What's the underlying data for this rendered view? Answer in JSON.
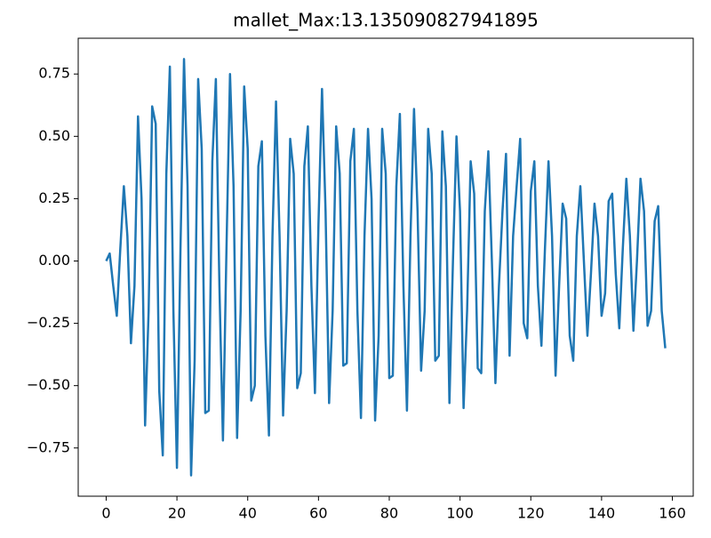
{
  "chart_data": {
    "type": "line",
    "title": "mallet_Max:13.135090827941895",
    "x": [
      0,
      1,
      2,
      3,
      4,
      5,
      6,
      7,
      8,
      9,
      10,
      11,
      12,
      13,
      14,
      15,
      16,
      17,
      18,
      19,
      20,
      21,
      22,
      23,
      24,
      25,
      26,
      27,
      28,
      29,
      30,
      31,
      32,
      33,
      34,
      35,
      36,
      37,
      38,
      39,
      40,
      41,
      42,
      43,
      44,
      45,
      46,
      47,
      48,
      49,
      50,
      51,
      52,
      53,
      54,
      55,
      56,
      57,
      58,
      59,
      60,
      61,
      62,
      63,
      64,
      65,
      66,
      67,
      68,
      69,
      70,
      71,
      72,
      73,
      74,
      75,
      76,
      77,
      78,
      79,
      80,
      81,
      82,
      83,
      84,
      85,
      86,
      87,
      88,
      89,
      90,
      91,
      92,
      93,
      94,
      95,
      96,
      97,
      98,
      99,
      100,
      101,
      102,
      103,
      104,
      105,
      106,
      107,
      108,
      109,
      110,
      111,
      112,
      113,
      114,
      115,
      116,
      117,
      118,
      119,
      120,
      121,
      122,
      123,
      124,
      125,
      126,
      127,
      128,
      129,
      130,
      131,
      132,
      133,
      134,
      135,
      136,
      137,
      138,
      139,
      140,
      141,
      142,
      143,
      144,
      145,
      146,
      147,
      148,
      149,
      150,
      151,
      152,
      153,
      154,
      155,
      156,
      157,
      158
    ],
    "series": [
      {
        "color": "#1f77b4",
        "values": [
          0,
          0.03,
          -0.1,
          -0.22,
          0.05,
          0.3,
          0.1,
          -0.33,
          -0.1,
          0.58,
          0.25,
          -0.66,
          -0.2,
          0.62,
          0.55,
          -0.52,
          -0.78,
          0.35,
          0.78,
          -0.2,
          -0.83,
          0.05,
          0.81,
          0.3,
          -0.86,
          -0.4,
          0.73,
          0.45,
          -0.61,
          -0.6,
          0.4,
          0.73,
          -0.1,
          -0.72,
          0.05,
          0.75,
          0.3,
          -0.71,
          -0.2,
          0.7,
          0.45,
          -0.56,
          -0.5,
          0.38,
          0.48,
          -0.3,
          -0.7,
          0.1,
          0.64,
          0.1,
          -0.62,
          -0.2,
          0.49,
          0.35,
          -0.51,
          -0.45,
          0.38,
          0.54,
          -0.1,
          -0.53,
          0.15,
          0.69,
          0.2,
          -0.57,
          -0.2,
          0.54,
          0.35,
          -0.42,
          -0.41,
          0.4,
          0.53,
          -0.2,
          -0.63,
          0.1,
          0.53,
          0.25,
          -0.64,
          -0.3,
          0.53,
          0.35,
          -0.47,
          -0.46,
          0.3,
          0.59,
          -0.1,
          -0.6,
          0.1,
          0.61,
          0.2,
          -0.44,
          -0.2,
          0.53,
          0.35,
          -0.4,
          -0.38,
          0.52,
          0.3,
          -0.57,
          0,
          0.5,
          0.2,
          -0.59,
          -0.2,
          0.4,
          0.27,
          -0.43,
          -0.45,
          0.2,
          0.44,
          0,
          -0.49,
          -0.1,
          0.2,
          0.43,
          -0.38,
          0.1,
          0.3,
          0.49,
          -0.25,
          -0.31,
          0.28,
          0.4,
          -0.1,
          -0.34,
          0.05,
          0.4,
          0.1,
          -0.46,
          -0.1,
          0.23,
          0.17,
          -0.3,
          -0.4,
          0.1,
          0.3,
          0,
          -0.3,
          -0.05,
          0.23,
          0.1,
          -0.22,
          -0.13,
          0.24,
          0.27,
          -0.05,
          -0.27,
          0.05,
          0.33,
          0.1,
          -0.28,
          0,
          0.33,
          0.2,
          -0.26,
          -0.2,
          0.16,
          0.22,
          -0.2,
          -0.35
        ]
      }
    ],
    "xlim": [
      -7.9,
      165.9
    ],
    "xticks": [
      0,
      20,
      40,
      60,
      80,
      100,
      120,
      140,
      160
    ],
    "ylim": [
      -0.9435,
      0.8935
    ],
    "yticks": [
      {
        "value": -0.75,
        "label": "−0.75"
      },
      {
        "value": -0.5,
        "label": "−0.50"
      },
      {
        "value": -0.25,
        "label": "−0.25"
      },
      {
        "value": 0,
        "label": "0.00"
      },
      {
        "value": 0.25,
        "label": "0.25"
      },
      {
        "value": 0.5,
        "label": "0.50"
      },
      {
        "value": 0.75,
        "label": "0.75"
      }
    ]
  }
}
